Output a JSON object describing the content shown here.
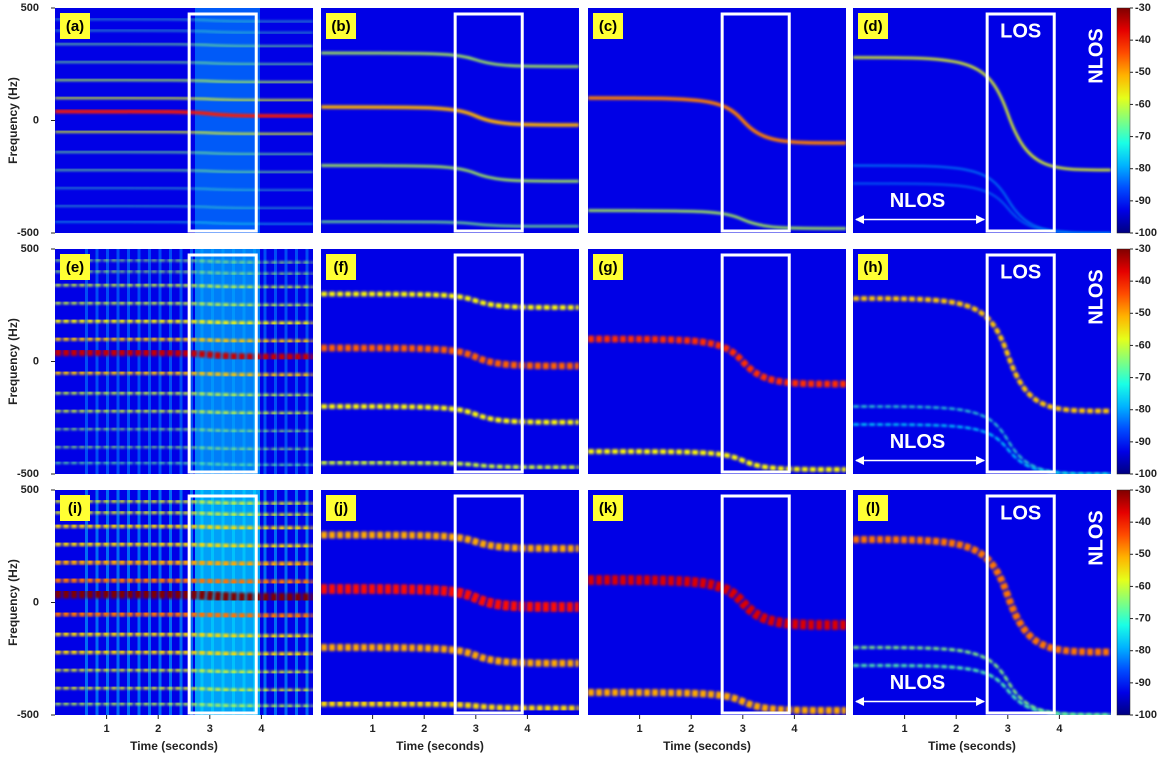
{
  "chart_data": [
    {
      "type": "heatmap",
      "label": "(a)",
      "xlim": [
        0,
        5
      ],
      "ylim": [
        -500,
        500
      ],
      "yticks": [
        -500,
        0,
        500
      ],
      "ylabel": "Frequency (Hz)",
      "colormap": "jet"
    },
    {
      "type": "heatmap",
      "label": "(b)",
      "xlim": [
        0,
        5
      ],
      "ylim": [
        -500,
        500
      ],
      "colormap": "jet"
    },
    {
      "type": "heatmap",
      "label": "(c)",
      "xlim": [
        0,
        5
      ],
      "ylim": [
        -500,
        500
      ],
      "colormap": "jet"
    },
    {
      "type": "heatmap",
      "label": "(d)",
      "xlim": [
        0,
        5
      ],
      "ylim": [
        -500,
        500
      ],
      "colormap": "jet",
      "clim": [
        -100,
        -30
      ],
      "colorbar_ticks": [
        -30,
        -40,
        -50,
        -60,
        -70,
        -80,
        -90,
        -100
      ],
      "annotations": [
        "LOS",
        "NLOS",
        "NLOS"
      ]
    },
    {
      "type": "heatmap",
      "label": "(e)",
      "xlim": [
        0,
        5
      ],
      "ylim": [
        -500,
        500
      ],
      "yticks": [
        -500,
        0,
        500
      ],
      "ylabel": "Frequency (Hz)",
      "colormap": "jet"
    },
    {
      "type": "heatmap",
      "label": "(f)",
      "xlim": [
        0,
        5
      ],
      "ylim": [
        -500,
        500
      ],
      "colormap": "jet"
    },
    {
      "type": "heatmap",
      "label": "(g)",
      "xlim": [
        0,
        5
      ],
      "ylim": [
        -500,
        500
      ],
      "colormap": "jet"
    },
    {
      "type": "heatmap",
      "label": "(h)",
      "xlim": [
        0,
        5
      ],
      "ylim": [
        -500,
        500
      ],
      "colormap": "jet",
      "clim": [
        -100,
        -30
      ],
      "colorbar_ticks": [
        -30,
        -40,
        -50,
        -60,
        -70,
        -80,
        -90,
        -100
      ],
      "annotations": [
        "LOS",
        "NLOS",
        "NLOS"
      ]
    },
    {
      "type": "heatmap",
      "label": "(i)",
      "xlim": [
        0,
        5
      ],
      "ylim": [
        -500,
        500
      ],
      "yticks": [
        -500,
        0,
        500
      ],
      "ylabel": "Frequency (Hz)",
      "xticks": [
        1,
        2,
        3,
        4
      ],
      "xlabel": "Time (seconds)",
      "colormap": "jet"
    },
    {
      "type": "heatmap",
      "label": "(j)",
      "xlim": [
        0,
        5
      ],
      "ylim": [
        -500,
        500
      ],
      "xticks": [
        1,
        2,
        3,
        4
      ],
      "xlabel": "Time (seconds)",
      "colormap": "jet"
    },
    {
      "type": "heatmap",
      "label": "(k)",
      "xlim": [
        0,
        5
      ],
      "ylim": [
        -500,
        500
      ],
      "xticks": [
        1,
        2,
        3,
        4
      ],
      "xlabel": "Time (seconds)",
      "colormap": "jet"
    },
    {
      "type": "heatmap",
      "label": "(l)",
      "xlim": [
        0,
        5
      ],
      "ylim": [
        -500,
        500
      ],
      "xticks": [
        1,
        2,
        3,
        4
      ],
      "xlabel": "Time (seconds)",
      "colormap": "jet",
      "clim": [
        -100,
        -30
      ],
      "colorbar_ticks": [
        -30,
        -40,
        -50,
        -60,
        -70,
        -80,
        -90,
        -100
      ],
      "annotations": [
        "LOS",
        "NLOS",
        "NLOS"
      ]
    }
  ]
}
